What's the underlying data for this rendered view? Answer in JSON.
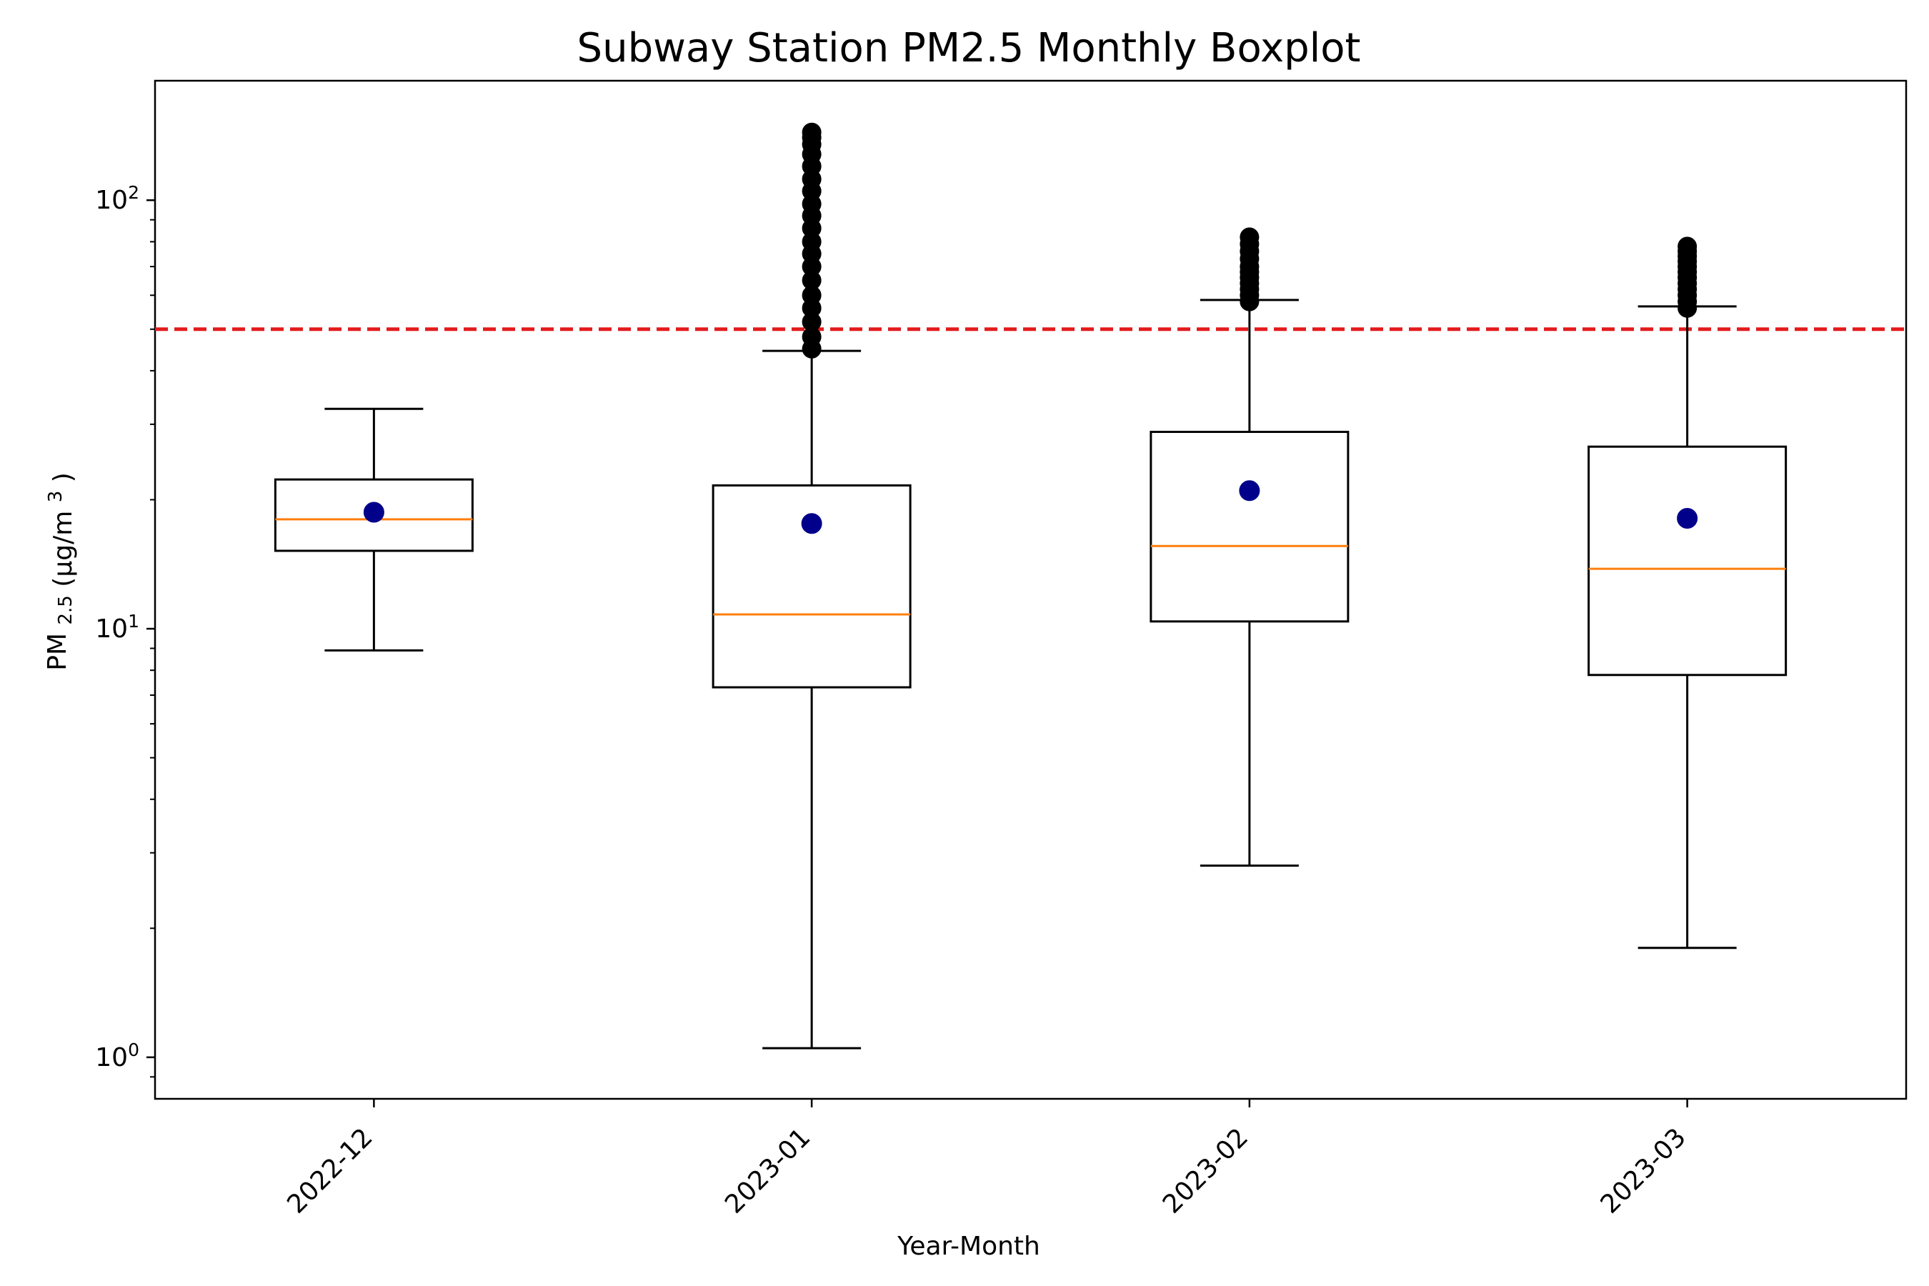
{
  "chart_data": {
    "type": "boxplot",
    "title": "Subway Station PM2.5 Monthly Boxplot",
    "xlabel": "Year-Month",
    "ylabel_main": "PM",
    "ylabel_sub": "2.5",
    "ylabel_units_prefix": "(μg/m",
    "ylabel_units_sup": "3",
    "ylabel_units_suffix": ")",
    "yscale": "log",
    "ylim": [
      0.8,
      190
    ],
    "ytick_values": [
      1,
      10,
      100
    ],
    "ytick_labels": [
      {
        "base": "10",
        "exp": "0"
      },
      {
        "base": "10",
        "exp": "1"
      },
      {
        "base": "10",
        "exp": "2"
      }
    ],
    "categories": [
      "2022-12",
      "2023-01",
      "2023-02",
      "2023-03"
    ],
    "boxes": [
      {
        "label": "2022-12",
        "whisker_low": 8.9,
        "q1": 15.2,
        "median": 18.0,
        "q3": 22.3,
        "whisker_high": 32.6,
        "mean": 18.7,
        "outliers": []
      },
      {
        "label": "2023-01",
        "whisker_low": 1.05,
        "q1": 7.3,
        "median": 10.8,
        "q3": 21.6,
        "whisker_high": 44.5,
        "mean": 17.6,
        "outliers": [
          45,
          48,
          52,
          56,
          60,
          65,
          70,
          75,
          80,
          86,
          92,
          98,
          105,
          112,
          120,
          128,
          135,
          140,
          144
        ]
      },
      {
        "label": "2023-02",
        "whisker_low": 2.8,
        "q1": 10.4,
        "median": 15.6,
        "q3": 28.8,
        "whisker_high": 58.5,
        "mean": 21.0,
        "outliers": [
          58,
          60,
          62,
          64,
          66,
          68,
          70,
          73,
          76,
          79,
          82
        ]
      },
      {
        "label": "2023-03",
        "whisker_low": 1.8,
        "q1": 7.8,
        "median": 13.8,
        "q3": 26.6,
        "whisker_high": 56.5,
        "mean": 18.1,
        "outliers": [
          56,
          58,
          60,
          62,
          64,
          66,
          68,
          70,
          72,
          74,
          76,
          78
        ]
      }
    ],
    "reference_line": 50,
    "colors": {
      "box": "#000000",
      "median": "#ff7f0e",
      "mean": "#00008b",
      "outlier": "#000000",
      "reference": "#e31a1c"
    }
  }
}
